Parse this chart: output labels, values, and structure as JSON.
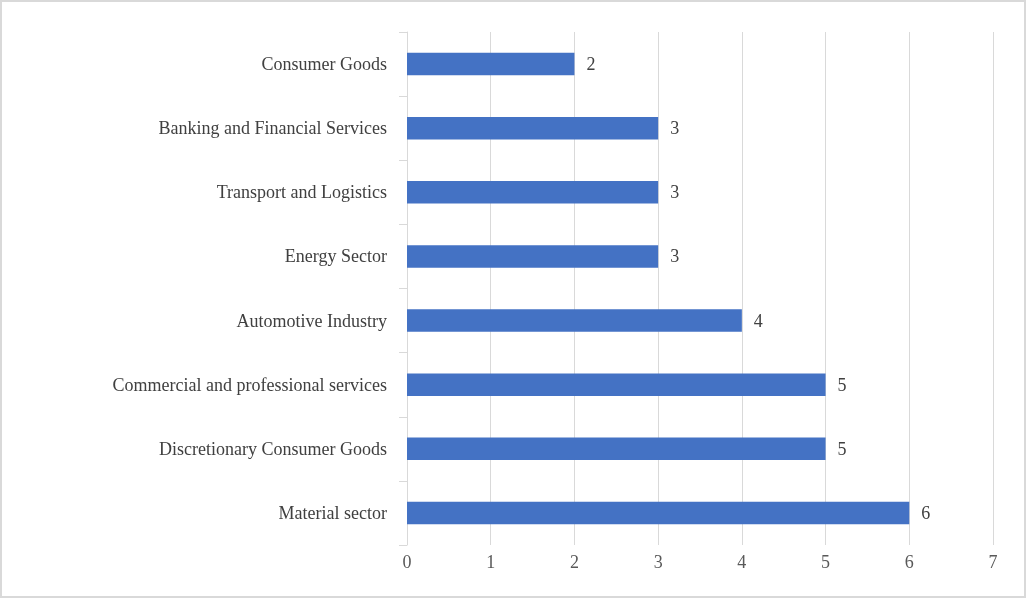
{
  "chart_data": {
    "type": "bar",
    "orientation": "horizontal",
    "categories": [
      "Consumer Goods",
      "Banking and Financial Services",
      "Transport and Logistics",
      "Energy Sector",
      "Automotive Industry",
      "Commercial and professional services",
      "Discretionary Consumer Goods",
      "Material sector"
    ],
    "values": [
      2,
      3,
      3,
      3,
      4,
      5,
      5,
      6
    ],
    "color": "#4472c4",
    "xlim": [
      0,
      7
    ],
    "xticks": [
      0,
      1,
      2,
      3,
      4,
      5,
      6,
      7
    ],
    "grid": "x",
    "data_labels": true
  }
}
